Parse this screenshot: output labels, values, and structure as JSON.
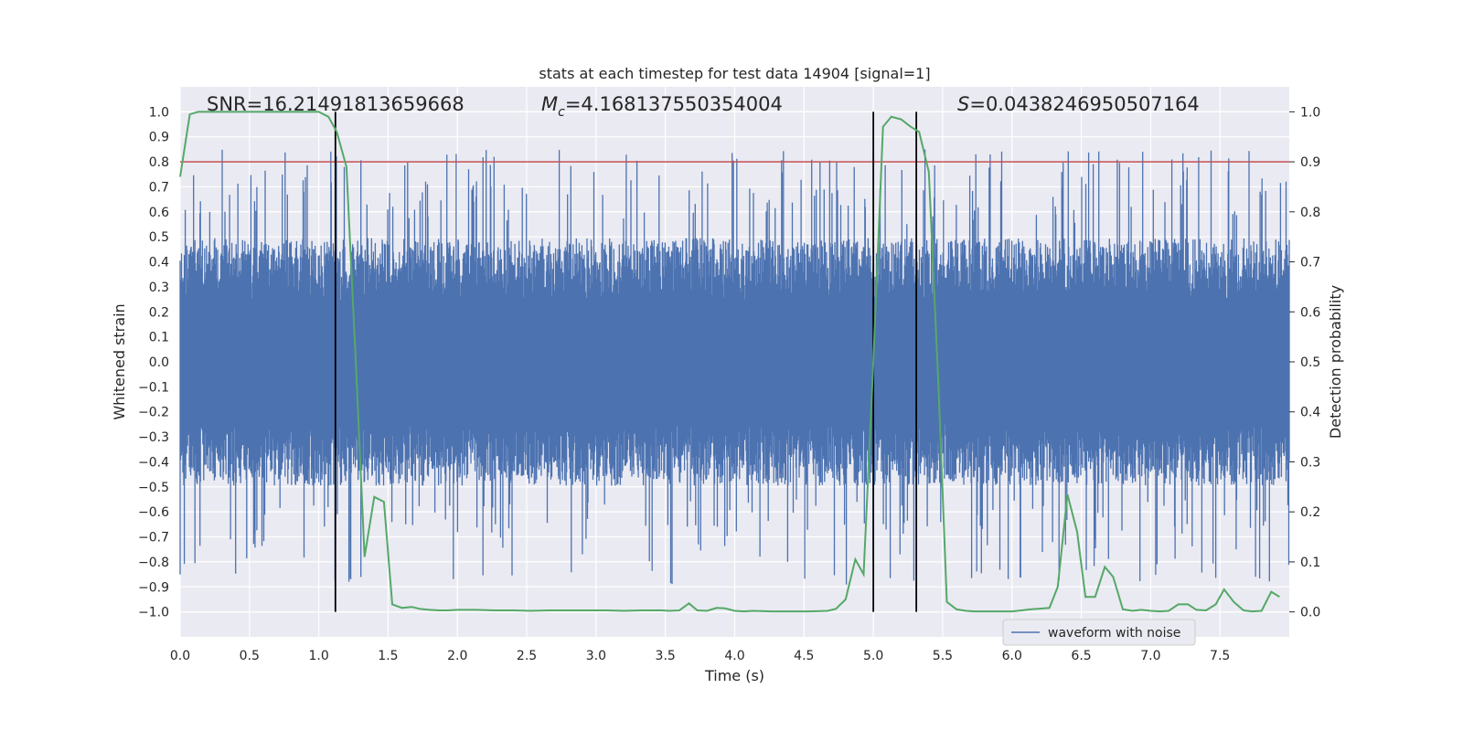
{
  "chart_data": {
    "type": "line",
    "title": "stats at each timestep for test data 14904 [signal=1]",
    "xlabel": "Time (s)",
    "ylabel": "Whitened strain",
    "y2label": "Detection probability",
    "xlim": [
      0.0,
      8.0
    ],
    "ylim": [
      -1.1,
      1.1
    ],
    "y2lim": [
      -0.05,
      1.05
    ],
    "xticks": [
      "0.0",
      "0.5",
      "1.0",
      "1.5",
      "2.0",
      "2.5",
      "3.0",
      "3.5",
      "4.0",
      "4.5",
      "5.0",
      "5.5",
      "6.0",
      "6.5",
      "7.0",
      "7.5"
    ],
    "yticks": [
      "1.0",
      "0.9",
      "0.8",
      "0.7",
      "0.6",
      "0.5",
      "0.4",
      "0.3",
      "0.2",
      "0.1",
      "0.0",
      "−0.1",
      "−0.2",
      "−0.3",
      "−0.4",
      "−0.5",
      "−0.6",
      "−0.7",
      "−0.8",
      "−0.9",
      "−1.0"
    ],
    "y2ticks": [
      "1.0",
      "0.9",
      "0.8",
      "0.7",
      "0.6",
      "0.5",
      "0.4",
      "0.3",
      "0.2",
      "0.1",
      "0.0"
    ],
    "annotations": {
      "snr": "SNR=16.21491813659668",
      "mc_symbol": "M",
      "mc_sub": "c",
      "mc_value": "=4.168137550354004",
      "s_symbol": "S",
      "s_value": "=0.0438246950507164"
    },
    "legend": {
      "label": "waveform with noise",
      "position": "lower right"
    },
    "threshold": {
      "y2": 0.9,
      "color": "#c44e52"
    },
    "vlines": [
      1.12,
      5.0,
      5.31
    ],
    "waveform": {
      "name": "waveform with noise",
      "color": "#4c72b0",
      "envelope_top": 0.55,
      "envelope_bottom": -0.55,
      "sample_rate": 2048,
      "duration": 8.0
    },
    "probability": {
      "color": "#55a868",
      "x": [
        0.0,
        0.07,
        0.13,
        0.2,
        0.27,
        0.33,
        0.4,
        0.47,
        0.53,
        0.6,
        0.67,
        0.73,
        0.8,
        0.87,
        0.93,
        1.0,
        1.07,
        1.13,
        1.2,
        1.27,
        1.33,
        1.4,
        1.47,
        1.53,
        1.6,
        1.67,
        1.73,
        1.8,
        1.87,
        1.93,
        2.0,
        2.13,
        2.27,
        2.4,
        2.53,
        2.67,
        2.8,
        2.93,
        3.07,
        3.2,
        3.33,
        3.47,
        3.53,
        3.6,
        3.67,
        3.73,
        3.8,
        3.87,
        3.93,
        4.0,
        4.07,
        4.13,
        4.27,
        4.4,
        4.53,
        4.67,
        4.73,
        4.8,
        4.87,
        4.93,
        5.0,
        5.07,
        5.13,
        5.2,
        5.27,
        5.33,
        5.4,
        5.47,
        5.53,
        5.6,
        5.67,
        5.73,
        5.8,
        5.87,
        5.93,
        6.0,
        6.07,
        6.13,
        6.27,
        6.33,
        6.4,
        6.47,
        6.53,
        6.6,
        6.67,
        6.73,
        6.8,
        6.87,
        6.93,
        7.0,
        7.07,
        7.13,
        7.2,
        7.27,
        7.33,
        7.4,
        7.47,
        7.53,
        7.6,
        7.67,
        7.73,
        7.8,
        7.87,
        7.93
      ],
      "y": [
        0.87,
        0.995,
        1.0,
        1.0,
        1.0,
        1.0,
        1.0,
        1.0,
        1.0,
        1.0,
        1.0,
        1.0,
        1.0,
        1.0,
        1.0,
        1.0,
        0.99,
        0.96,
        0.89,
        0.48,
        0.11,
        0.23,
        0.22,
        0.015,
        0.008,
        0.01,
        0.006,
        0.004,
        0.003,
        0.003,
        0.004,
        0.004,
        0.003,
        0.003,
        0.002,
        0.003,
        0.003,
        0.003,
        0.003,
        0.002,
        0.003,
        0.003,
        0.002,
        0.003,
        0.017,
        0.003,
        0.002,
        0.008,
        0.007,
        0.002,
        0.001,
        0.002,
        0.001,
        0.001,
        0.001,
        0.002,
        0.006,
        0.025,
        0.105,
        0.075,
        0.5,
        0.97,
        0.99,
        0.985,
        0.97,
        0.96,
        0.88,
        0.45,
        0.02,
        0.005,
        0.002,
        0.001,
        0.001,
        0.001,
        0.001,
        0.001,
        0.003,
        0.005,
        0.008,
        0.05,
        0.235,
        0.16,
        0.03,
        0.03,
        0.09,
        0.07,
        0.005,
        0.002,
        0.004,
        0.002,
        0.001,
        0.002,
        0.015,
        0.015,
        0.004,
        0.003,
        0.015,
        0.045,
        0.02,
        0.003,
        0.001,
        0.002,
        0.04,
        0.03
      ]
    }
  }
}
